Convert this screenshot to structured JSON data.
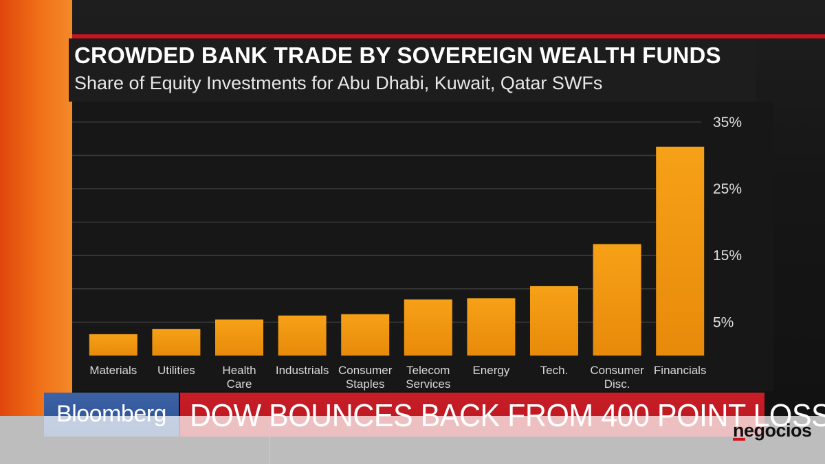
{
  "chart_data": {
    "type": "bar",
    "title": "CROWDED BANK TRADE BY SOVEREIGN WEALTH FUNDS",
    "subtitle": "Share of Equity Investments for Abu Dhabi, Kuwait, Qatar SWFs",
    "categories": [
      [
        "Materials"
      ],
      [
        "Utilities"
      ],
      [
        "Health",
        "Care"
      ],
      [
        "Industrials"
      ],
      [
        "Consumer",
        "Staples"
      ],
      [
        "Telecom",
        "Services"
      ],
      [
        "Energy"
      ],
      [
        "Tech."
      ],
      [
        "Consumer",
        "Disc."
      ],
      [
        "Financials"
      ]
    ],
    "values": [
      3.2,
      4.0,
      5.4,
      6.0,
      6.2,
      8.4,
      8.6,
      10.4,
      16.7,
      31.3
    ],
    "value_unit": "%",
    "ylim": [
      0,
      35
    ],
    "yticks": [
      {
        "value": 5,
        "label": "5%"
      },
      {
        "value": 15,
        "label": "15%"
      },
      {
        "value": 25,
        "label": "25%"
      },
      {
        "value": 35,
        "label": "35%"
      }
    ],
    "grid_values": [
      5,
      10,
      15,
      20,
      25,
      30,
      35
    ],
    "grid": true,
    "ytick_side": "right",
    "bar_color": "#f29a12"
  },
  "ticker": {
    "brand": "Bloomberg",
    "headline": "DOW BOUNCES BACK FROM 400 POINT LOSS"
  },
  "watermark": {
    "logo": "negocios"
  },
  "colors": {
    "accent_red": "#c8141e",
    "brand_blue": "#2f559a",
    "headline_red": "#c81d27"
  }
}
